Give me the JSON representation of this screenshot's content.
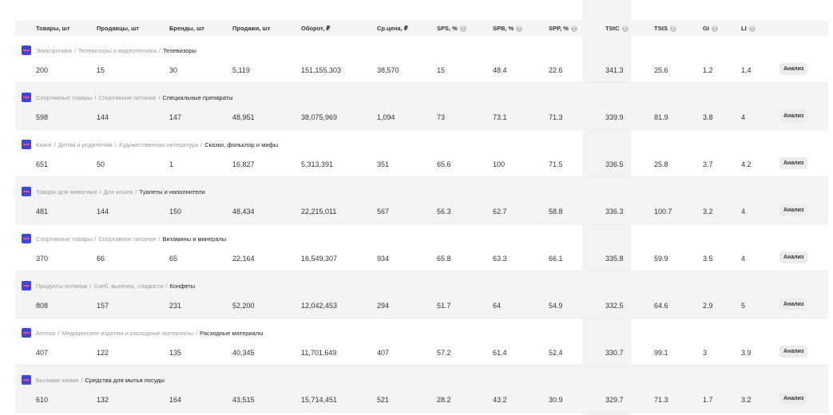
{
  "headers": [
    {
      "label": "Товары, шт",
      "info": false
    },
    {
      "label": "Продавцы, шт",
      "info": false
    },
    {
      "label": "Бренды, шт",
      "info": false
    },
    {
      "label": "Продажи, шт",
      "info": false
    },
    {
      "label": "Оборот, ₽",
      "info": false
    },
    {
      "label": "Ср.цена, ₽",
      "info": false
    },
    {
      "label": "SPS, %",
      "info": true
    },
    {
      "label": "SPB, %",
      "info": true
    },
    {
      "label": "SPP, %",
      "info": true
    },
    {
      "label": "TStC",
      "info": true
    },
    {
      "label": "TStS",
      "info": true
    },
    {
      "label": "GI",
      "info": true
    },
    {
      "label": "LI",
      "info": true
    }
  ],
  "analyze_label": "Анализ",
  "rows": [
    {
      "path": [
        "Электроника",
        "Телевизоры и видеотехника"
      ],
      "leaf": "Телевизоры",
      "values": [
        "200",
        "15",
        "30",
        "5,119",
        "151,155,303",
        "38,570",
        "15",
        "48.4",
        "22.6",
        "341.3",
        "25.6",
        "1.2",
        "1.4"
      ]
    },
    {
      "path": [
        "Спортивные товары",
        "Спортивное питание"
      ],
      "leaf": "Специальные препараты",
      "values": [
        "598",
        "144",
        "147",
        "48,951",
        "38,075,969",
        "1,094",
        "73",
        "73.1",
        "71.3",
        "339.9",
        "81.9",
        "3.8",
        "4"
      ]
    },
    {
      "path": [
        "Книги",
        "Детям и родителям",
        "Художественная литература"
      ],
      "leaf": "Сказки, фольклор и мифы",
      "values": [
        "651",
        "50",
        "1",
        "16,827",
        "5,313,391",
        "351",
        "65.6",
        "100",
        "71.5",
        "336.5",
        "25.8",
        "3.7",
        "4.2"
      ]
    },
    {
      "path": [
        "Товары для животных",
        "Для кошек"
      ],
      "leaf": "Туалеты и наполнители",
      "values": [
        "481",
        "144",
        "150",
        "48,434",
        "22,215,011",
        "567",
        "56.3",
        "62.7",
        "58.8",
        "336.3",
        "100.7",
        "3.2",
        "4"
      ]
    },
    {
      "path": [
        "Спортивные товары",
        "Спортивное питание"
      ],
      "leaf": "Витамины и минералы",
      "values": [
        "370",
        "66",
        "65",
        "22,164",
        "16,549,307",
        "934",
        "65.8",
        "63.3",
        "66.1",
        "335.8",
        "59.9",
        "3.5",
        "4"
      ]
    },
    {
      "path": [
        "Продукты питания",
        "Хлеб, выпечка, сладости"
      ],
      "leaf": "Конфеты",
      "values": [
        "808",
        "157",
        "231",
        "52,200",
        "12,042,453",
        "294",
        "51.7",
        "64",
        "54.9",
        "332.5",
        "64.6",
        "2.9",
        "5"
      ]
    },
    {
      "path": [
        "Аптека",
        "Медицинские изделия и расходные материалы"
      ],
      "leaf": "Расходные материалы",
      "values": [
        "407",
        "122",
        "135",
        "40,345",
        "11,701,649",
        "407",
        "57.2",
        "61.4",
        "52.4",
        "330.7",
        "99.1",
        "3",
        "3.9"
      ]
    },
    {
      "path": [
        "Бытовая химия"
      ],
      "leaf": "Средства для мытья посуды",
      "values": [
        "610",
        "132",
        "164",
        "43,515",
        "15,714,451",
        "521",
        "28.2",
        "43.2",
        "30.9",
        "329.7",
        "71.3",
        "1.7",
        "3.2"
      ]
    }
  ]
}
